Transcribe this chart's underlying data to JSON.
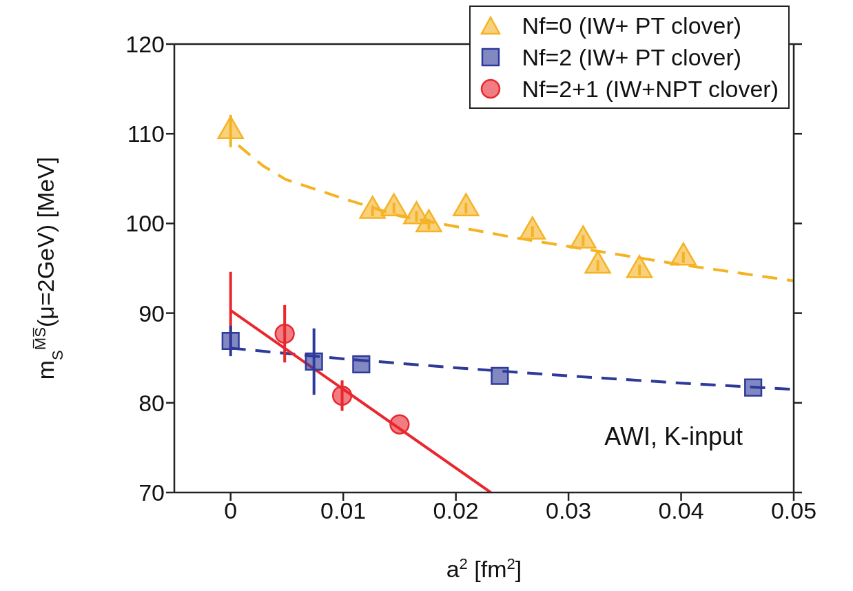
{
  "chart_data": {
    "type": "scatter",
    "xlabel": "a$^{2}$ [fm$^{2}$]",
    "ylabel": "m$_{S}$$^{M̅S̅}$(μ=2GeV) [MeV]",
    "xlim": [
      -0.005,
      0.05
    ],
    "xticks": [
      0,
      0.01,
      0.02,
      0.03,
      0.04,
      0.05
    ],
    "ylim": [
      70,
      120
    ],
    "yticks": [
      70,
      80,
      90,
      100,
      110,
      120
    ],
    "legend": "top right",
    "annotations": [
      "AWI, K-input"
    ],
    "series": [
      {
        "name": "Nf=0 (IW+ PT clover)",
        "marker": "triangle",
        "color": "#f5b324",
        "x": [
          0,
          0.0126,
          0.0145,
          0.0165,
          0.0176,
          0.0209,
          0.0268,
          0.0313,
          0.0326,
          0.0363,
          0.0402
        ],
        "values": [
          110.3,
          101.4,
          101.7,
          100.8,
          99.9,
          101.7,
          99.1,
          98.1,
          95.3,
          94.8,
          96.2
        ],
        "errors": [
          1.8,
          0.6,
          0.6,
          0.6,
          0.6,
          0.6,
          0.6,
          0.6,
          0.6,
          0.6,
          0.6
        ]
      },
      {
        "name": "Nf=2 (IW+ PT clover)",
        "marker": "square",
        "color": "#2e3a9a",
        "x": [
          0,
          0.0074,
          0.0116,
          0.0239,
          0.0464
        ],
        "values": [
          86.9,
          84.6,
          84.3,
          83.0,
          81.7
        ],
        "errors": [
          1.7,
          3.7,
          null,
          null,
          null
        ]
      },
      {
        "name": "Nf=2+1 (IW+NPT clover)",
        "marker": "circle",
        "color": "#e8272e",
        "x": [
          0.0048,
          0.0099,
          0.015
        ],
        "values": [
          87.7,
          80.8,
          77.6
        ],
        "errors": [
          3.2,
          1.7,
          null
        ]
      },
      {
        "type": "line",
        "line_style": "dashed",
        "color": "#f5b324",
        "x": [
          0.0007,
          0.0029,
          0.0049,
          0.0078,
          0.0102,
          0.0151,
          0.0253,
          0.0395,
          0.05
        ],
        "values": [
          108.7,
          106.4,
          104.9,
          103.7,
          102.7,
          100.8,
          98.4,
          95.5,
          93.6
        ]
      },
      {
        "type": "line",
        "line_style": "dashed",
        "color": "#2e3a9a",
        "x": [
          0,
          0.01,
          0.02,
          0.03,
          0.04,
          0.05
        ],
        "values": [
          86.1,
          84.9,
          83.9,
          83.0,
          82.2,
          81.5
        ]
      },
      {
        "type": "line",
        "line_style": "solid",
        "color": "#e8272e",
        "x": [
          0,
          0.0231
        ],
        "values": [
          90.3,
          70.0
        ],
        "errors": [
          [
            86.0,
            94.6
          ],
          null
        ]
      }
    ]
  }
}
